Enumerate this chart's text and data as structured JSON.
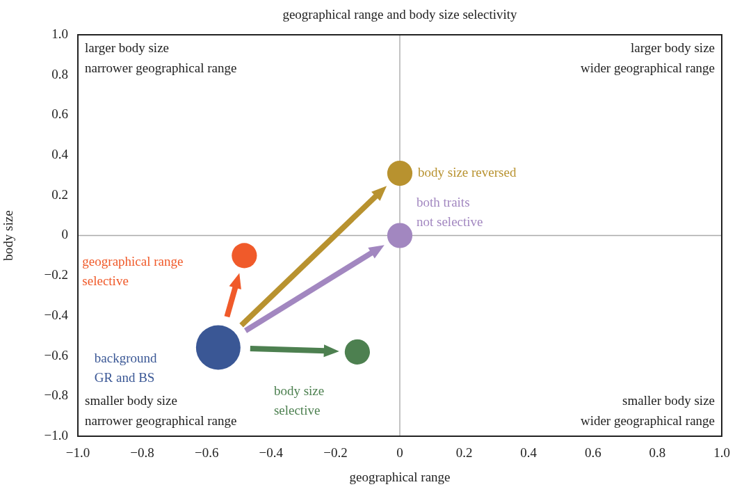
{
  "chart_data": {
    "type": "bubble",
    "title": "geographical range and body size selectivity",
    "xlabel": "geographical range",
    "ylabel": "body size",
    "series": [
      {
        "name": "background\nGR and BS",
        "color": "#3a5795",
        "x": [
          -0.564
        ],
        "values": [
          -0.558
        ],
        "sizes": [
          1
        ]
      },
      {
        "name": "geographical range\nselective",
        "color": "#f05a2a",
        "x": [
          -0.483
        ],
        "values": [
          -0.1
        ],
        "sizes": [
          0.32
        ]
      },
      {
        "name": "body size reversed",
        "color": "#b8922f",
        "x": [
          0
        ],
        "values": [
          0.31
        ],
        "sizes": [
          0.32
        ]
      },
      {
        "name": "both traits\nnot selective",
        "color": "#a287c0",
        "x": [
          0
        ],
        "values": [
          0
        ],
        "sizes": [
          0.32
        ]
      },
      {
        "name": "body size\nselective",
        "color": "#4d8050",
        "x": [
          -0.132
        ],
        "values": [
          -0.58
        ],
        "sizes": [
          0.32
        ]
      }
    ],
    "xlim": [
      -1.0,
      1.0
    ],
    "ylim": [
      -1.0,
      1.0
    ],
    "xticks": [
      {
        "value": -1.0,
        "label": "−1.0"
      },
      {
        "value": -0.8,
        "label": "−0.8"
      },
      {
        "value": -0.6,
        "label": "−0.6"
      },
      {
        "value": -0.4,
        "label": "−0.4"
      },
      {
        "value": -0.2,
        "label": "−0.2"
      },
      0,
      {
        "value": 0.2,
        "label": "0.2"
      },
      {
        "value": 0.4,
        "label": "0.4"
      },
      {
        "value": 0.6,
        "label": "0.6"
      },
      {
        "value": 0.8,
        "label": "0.8"
      },
      {
        "value": 1.0,
        "label": "1.0"
      }
    ],
    "yticks": [
      {
        "value": -1.0,
        "label": "−1.0"
      },
      {
        "value": -0.8,
        "label": "−0.8"
      },
      {
        "value": -0.6,
        "label": "−0.6"
      },
      {
        "value": -0.4,
        "label": "−0.4"
      },
      {
        "value": -0.2,
        "label": "−0.2"
      },
      0,
      {
        "value": 0.2,
        "label": "0.2"
      },
      {
        "value": 0.4,
        "label": "0.4"
      },
      {
        "value": 0.6,
        "label": "0.6"
      },
      {
        "value": 0.8,
        "label": "0.8"
      },
      {
        "value": 1.0,
        "label": "1.0"
      }
    ],
    "ref_lines": [
      {
        "axis": "x",
        "value": 0,
        "color": "#b0b0b0"
      },
      {
        "axis": "y",
        "value": 0,
        "color": "#a9a9a9"
      }
    ],
    "annotations": [
      "larger body size\nnarrower geographical range",
      "larger body size\nwider geographical range",
      "smaller body size\nnarrower geographical range",
      "smaller body size\nwider geographical range"
    ],
    "grid": false,
    "legend": false
  }
}
